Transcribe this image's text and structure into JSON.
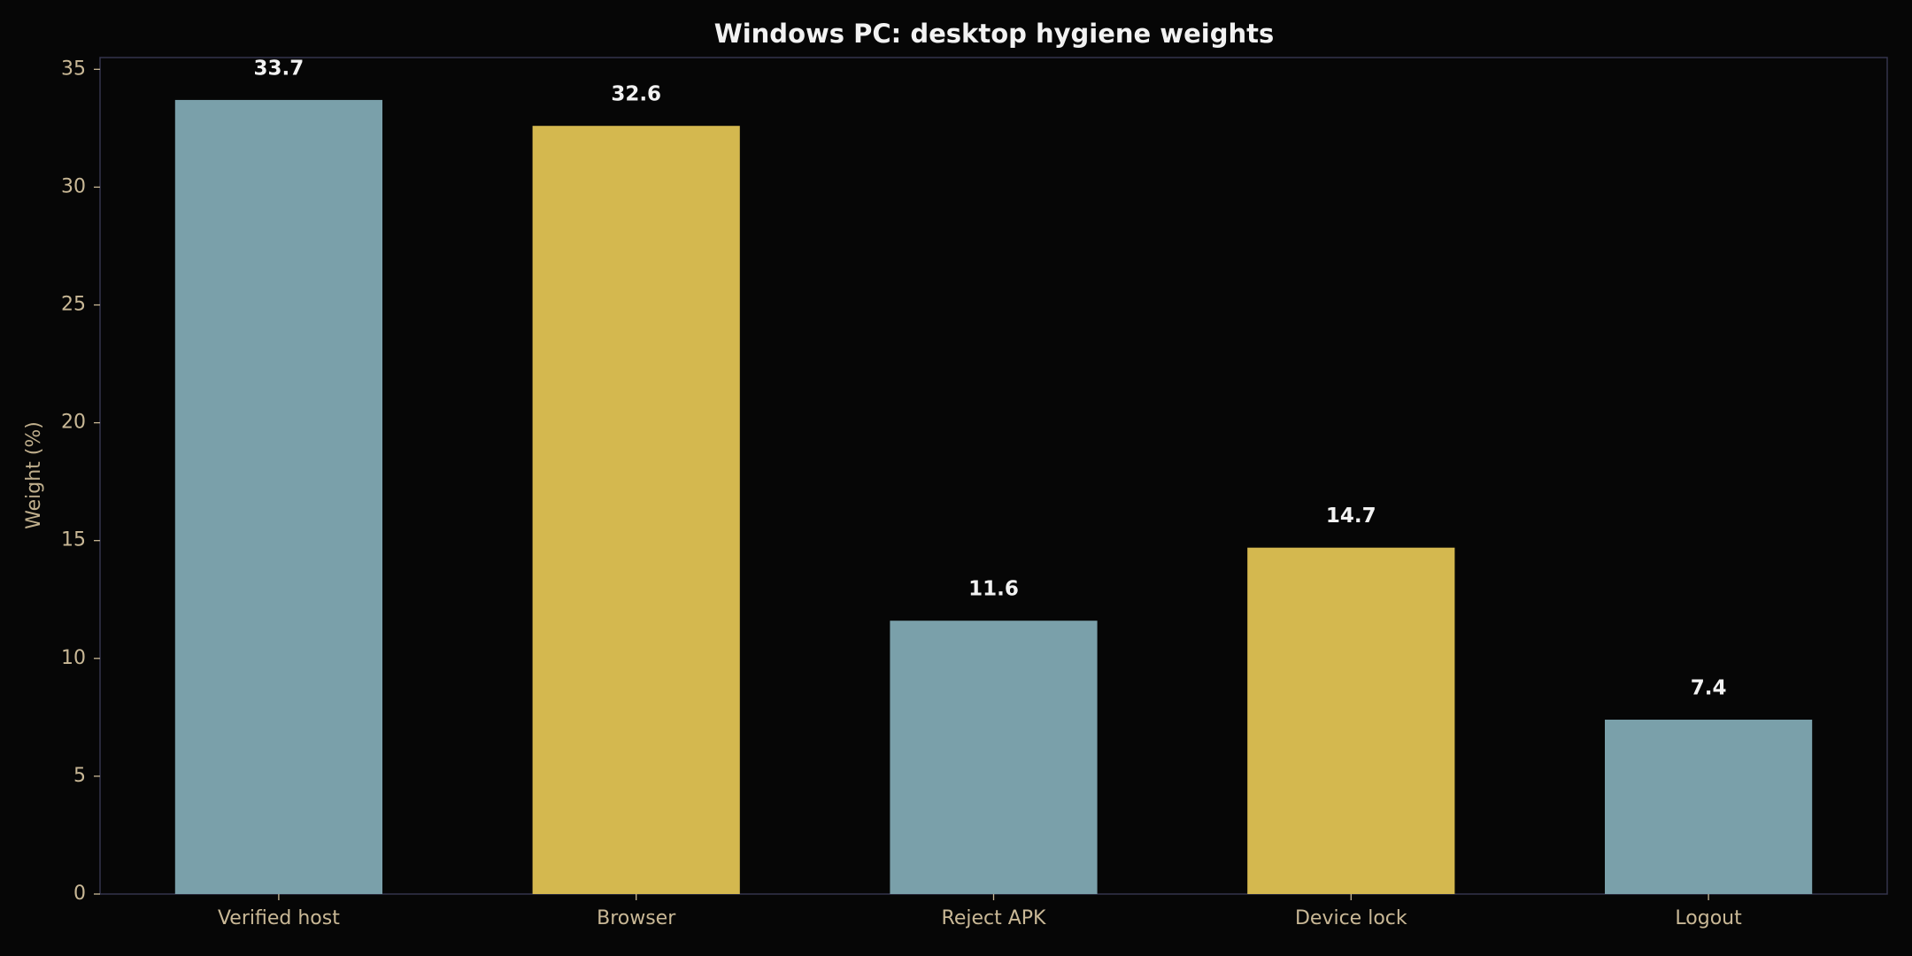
{
  "chart_data": {
    "type": "bar",
    "title": "Windows PC: desktop hygiene weights",
    "y_label": "Weight (%)",
    "categories": [
      "Verified host",
      "Browser",
      "Reject APK",
      "Device lock",
      "Logout"
    ],
    "values": [
      33.7,
      32.6,
      11.6,
      14.7,
      7.4
    ],
    "colors": [
      "#7aa0aa",
      "#d4b84f",
      "#7aa0aa",
      "#d4b84f",
      "#7aa0aa"
    ],
    "ylim": [
      0,
      35.5
    ],
    "yticks": [
      0,
      5,
      10,
      15,
      20,
      25,
      30,
      35
    ],
    "grid": false
  }
}
